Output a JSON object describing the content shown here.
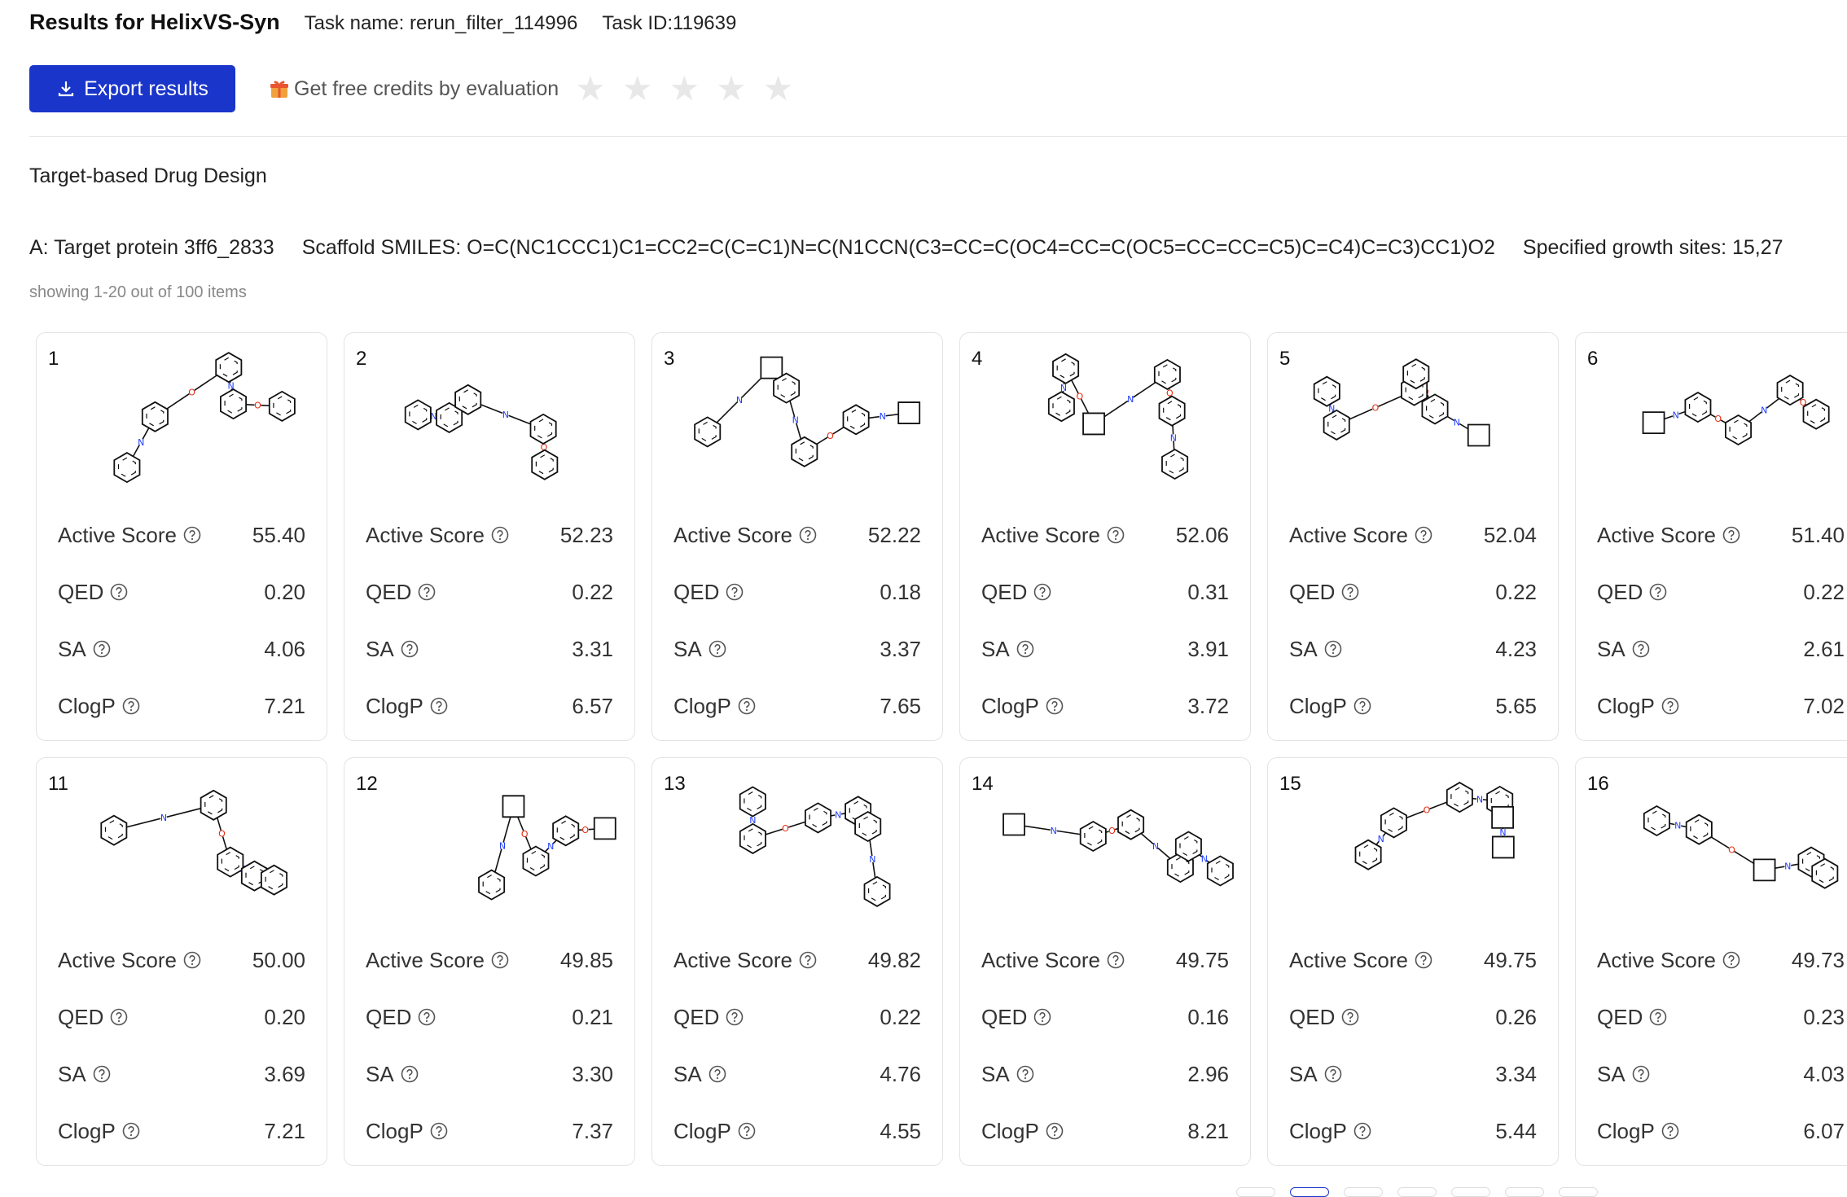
{
  "header": {
    "title": "Results for HelixVS-Syn",
    "task_name": "Task name: rerun_filter_114996",
    "task_id": "Task ID:119639"
  },
  "toolbar": {
    "export_label": "Export results",
    "credits_text": "Get free credits by evaluation",
    "rating_stars": 5,
    "rating_value": 0
  },
  "design_mode": "Target-based Drug Design",
  "target": {
    "protein": "A: Target protein 3ff6_2833",
    "scaffold": "Scaffold SMILES: O=C(NC1CCC1)C1=CC2=C(C=C1)N=C(N1CCN(C3=CC=C(OC4=CC=C(OC5=CC=CC=C5)C=C4)C=C3)CC1)O2",
    "growth_sites": "Specified growth sites: 15,27"
  },
  "showing": "showing 1-20 out of 100 items",
  "metric_labels": {
    "active": "Active Score",
    "qed": "QED",
    "sa": "SA",
    "clogp": "ClogP"
  },
  "cards": [
    {
      "index": "1",
      "active": "55.40",
      "qed": "0.20",
      "sa": "4.06",
      "clogp": "7.21"
    },
    {
      "index": "2",
      "active": "52.23",
      "qed": "0.22",
      "sa": "3.31",
      "clogp": "6.57"
    },
    {
      "index": "3",
      "active": "52.22",
      "qed": "0.18",
      "sa": "3.37",
      "clogp": "7.65"
    },
    {
      "index": "4",
      "active": "52.06",
      "qed": "0.31",
      "sa": "3.91",
      "clogp": "3.72"
    },
    {
      "index": "5",
      "active": "52.04",
      "qed": "0.22",
      "sa": "4.23",
      "clogp": "5.65"
    },
    {
      "index": "6",
      "active": "51.40",
      "qed": "0.22",
      "sa": "2.61",
      "clogp": "7.02"
    },
    {
      "index": "11",
      "active": "50.00",
      "qed": "0.20",
      "sa": "3.69",
      "clogp": "7.21"
    },
    {
      "index": "12",
      "active": "49.85",
      "qed": "0.21",
      "sa": "3.30",
      "clogp": "7.37"
    },
    {
      "index": "13",
      "active": "49.82",
      "qed": "0.22",
      "sa": "4.76",
      "clogp": "4.55"
    },
    {
      "index": "14",
      "active": "49.75",
      "qed": "0.16",
      "sa": "2.96",
      "clogp": "8.21"
    },
    {
      "index": "15",
      "active": "49.75",
      "qed": "0.26",
      "sa": "3.34",
      "clogp": "5.44"
    },
    {
      "index": "16",
      "active": "49.73",
      "qed": "0.23",
      "sa": "4.03",
      "clogp": "6.07"
    }
  ],
  "colors": {
    "accent": "#1a35c9",
    "star_empty": "#e8e8e8",
    "oxygen": "#e8260c",
    "nitrogen": "#1f3cff"
  }
}
